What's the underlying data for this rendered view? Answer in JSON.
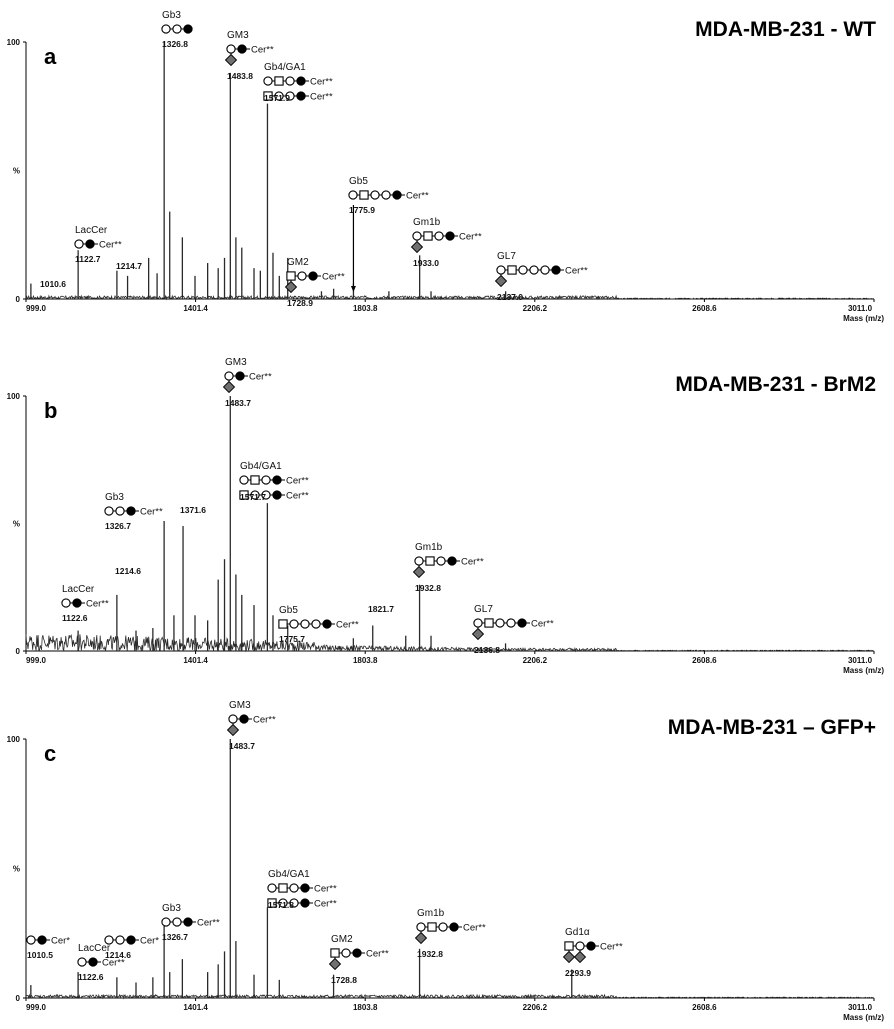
{
  "figure": {
    "x_range": [
      999.0,
      3011.0
    ],
    "x_ticks": [
      "999.0",
      "1401.4",
      "1803.8",
      "2206.2",
      "2608.6",
      "3011.0"
    ],
    "x_label": "Mass (m/z)",
    "y_ticks": [
      "0",
      "%",
      "100"
    ],
    "colors": {
      "trace": "#2a2a2a",
      "axis": "#000000",
      "diamond": "#707070",
      "filled": "#000000"
    }
  },
  "chart_data": [
    {
      "type": "line",
      "letter": "a",
      "title": "MDA-MB-231 - WT",
      "ylim": [
        0,
        100
      ],
      "noise": 1.2,
      "peaks": [
        {
          "mz": 1010.6,
          "h": 6
        },
        {
          "mz": 1122.7,
          "h": 19
        },
        {
          "mz": 1214.7,
          "h": 11
        },
        {
          "mz": 1240,
          "h": 9
        },
        {
          "mz": 1290,
          "h": 16
        },
        {
          "mz": 1310,
          "h": 10
        },
        {
          "mz": 1326.8,
          "h": 100
        },
        {
          "mz": 1340,
          "h": 34
        },
        {
          "mz": 1370,
          "h": 24
        },
        {
          "mz": 1400,
          "h": 9
        },
        {
          "mz": 1430,
          "h": 14
        },
        {
          "mz": 1455,
          "h": 12
        },
        {
          "mz": 1470,
          "h": 16
        },
        {
          "mz": 1483.8,
          "h": 88
        },
        {
          "mz": 1497,
          "h": 24
        },
        {
          "mz": 1511,
          "h": 20
        },
        {
          "mz": 1540,
          "h": 12
        },
        {
          "mz": 1555,
          "h": 11
        },
        {
          "mz": 1571.9,
          "h": 76
        },
        {
          "mz": 1585,
          "h": 18
        },
        {
          "mz": 1600,
          "h": 9
        },
        {
          "mz": 1620,
          "h": 16
        },
        {
          "mz": 1700,
          "h": 3
        },
        {
          "mz": 1728.9,
          "h": 4
        },
        {
          "mz": 1775.9,
          "h": 6
        },
        {
          "mz": 1860,
          "h": 3
        },
        {
          "mz": 1933.0,
          "h": 17
        },
        {
          "mz": 1960,
          "h": 3
        },
        {
          "mz": 2137.0,
          "h": 3
        }
      ],
      "annotations": [
        {
          "name": "LacCer",
          "mz": "1122.7",
          "glyph": "OF",
          "cer": "Cer**"
        },
        {
          "mz": "1214.7"
        },
        {
          "mz": "1010.6"
        },
        {
          "name": "Gb3",
          "mz": "1326.8",
          "glyph": "OOF"
        },
        {
          "name": "GM3",
          "mz": "1483.8",
          "glyph": "OF",
          "cer": "Cer**",
          "diamonds": 1
        },
        {
          "name": "Gb4/GA1",
          "mz": "1571.9",
          "glyph": "OSOF",
          "glyph2": "SOOF",
          "cer": "Cer**"
        },
        {
          "name": "GM2",
          "mz": "1728.9",
          "glyph": "SOF",
          "cer": "Cer**",
          "diamonds": 1
        },
        {
          "name": "Gb5",
          "mz": "1775.9",
          "glyph": "OSOOF",
          "cer": "Cer**"
        },
        {
          "name": "Gm1b",
          "mz": "1933.0",
          "glyph": "OSOF",
          "cer": "Cer**",
          "diamonds": 1
        },
        {
          "name": "GL7",
          "mz": "2137.0",
          "glyph": "OSOOOF",
          "cer": "Cer**",
          "diamonds": 1
        }
      ]
    },
    {
      "type": "line",
      "letter": "b",
      "title": "MDA-MB-231 - BrM2",
      "ylim": [
        0,
        100
      ],
      "noise": 4.5,
      "peaks": [
        {
          "mz": 1122.6,
          "h": 8
        },
        {
          "mz": 1214.6,
          "h": 22
        },
        {
          "mz": 1260,
          "h": 8
        },
        {
          "mz": 1300,
          "h": 9
        },
        {
          "mz": 1326.7,
          "h": 51
        },
        {
          "mz": 1350,
          "h": 14
        },
        {
          "mz": 1371.6,
          "h": 49
        },
        {
          "mz": 1400,
          "h": 14
        },
        {
          "mz": 1430,
          "h": 12
        },
        {
          "mz": 1455,
          "h": 28
        },
        {
          "mz": 1470,
          "h": 36
        },
        {
          "mz": 1483.7,
          "h": 100
        },
        {
          "mz": 1497,
          "h": 30
        },
        {
          "mz": 1511,
          "h": 22
        },
        {
          "mz": 1540,
          "h": 18
        },
        {
          "mz": 1571.7,
          "h": 58
        },
        {
          "mz": 1585,
          "h": 14
        },
        {
          "mz": 1620,
          "h": 10
        },
        {
          "mz": 1775.7,
          "h": 5
        },
        {
          "mz": 1821.7,
          "h": 10
        },
        {
          "mz": 1900,
          "h": 6
        },
        {
          "mz": 1932.8,
          "h": 26
        },
        {
          "mz": 1960,
          "h": 6
        },
        {
          "mz": 2136.8,
          "h": 3
        }
      ],
      "annotations": [
        {
          "name": "LacCer",
          "mz": "1122.6",
          "glyph": "OF",
          "cer": "Cer**"
        },
        {
          "mz": "1214.6"
        },
        {
          "name": "Gb3",
          "mz": "1326.7",
          "glyph": "OOF",
          "cer": "Cer**"
        },
        {
          "mz": "1371.6"
        },
        {
          "name": "GM3",
          "mz": "1483.7",
          "glyph": "OF",
          "cer": "Cer**",
          "diamonds": 1
        },
        {
          "name": "Gb4/GA1",
          "mz": "1571.7",
          "glyph": "OSOF",
          "glyph2": "SOOF",
          "cer": "Cer**"
        },
        {
          "name": "Gb5",
          "mz": "1775.7",
          "glyph": "SOOOF",
          "cer": "Cer**"
        },
        {
          "mz": "1821.7"
        },
        {
          "name": "Gm1b",
          "mz": "1932.8",
          "glyph": "OSOF",
          "cer": "Cer**",
          "diamonds": 1
        },
        {
          "name": "GL7",
          "mz": "2136.8",
          "glyph": "OSOOF",
          "cer": "Cer**",
          "diamonds": 1
        }
      ]
    },
    {
      "type": "line",
      "letter": "c",
      "title": "MDA-MB-231 – GFP+",
      "ylim": [
        0,
        100
      ],
      "noise": 1.2,
      "peaks": [
        {
          "mz": 1010.5,
          "h": 5
        },
        {
          "mz": 1122.6,
          "h": 10
        },
        {
          "mz": 1214.6,
          "h": 8
        },
        {
          "mz": 1260,
          "h": 6
        },
        {
          "mz": 1300,
          "h": 8
        },
        {
          "mz": 1326.7,
          "h": 29
        },
        {
          "mz": 1340,
          "h": 10
        },
        {
          "mz": 1370,
          "h": 15
        },
        {
          "mz": 1430,
          "h": 10
        },
        {
          "mz": 1455,
          "h": 13
        },
        {
          "mz": 1470,
          "h": 18
        },
        {
          "mz": 1483.7,
          "h": 100
        },
        {
          "mz": 1497,
          "h": 22
        },
        {
          "mz": 1540,
          "h": 9
        },
        {
          "mz": 1571.8,
          "h": 35
        },
        {
          "mz": 1600,
          "h": 7
        },
        {
          "mz": 1728.8,
          "h": 9
        },
        {
          "mz": 1932.8,
          "h": 19
        },
        {
          "mz": 2293.9,
          "h": 11
        }
      ],
      "annotations": [
        {
          "mz": "1010.5",
          "glyph": "OF",
          "cer": "Cer*"
        },
        {
          "name": "LacCer",
          "mz": "1122.6",
          "glyph": "OF",
          "cer": "Cer**"
        },
        {
          "mz": "1214.6",
          "glyph": "OOF",
          "cer": "Cer*"
        },
        {
          "name": "Gb3",
          "mz": "1326.7",
          "glyph": "OOF",
          "cer": "Cer**"
        },
        {
          "name": "GM3",
          "mz": "1483.7",
          "glyph": "OF",
          "cer": "Cer**",
          "diamonds": 1
        },
        {
          "name": "Gb4/GA1",
          "mz": "1571.8",
          "glyph": "OSOF",
          "glyph2": "SOOF",
          "cer": "Cer**"
        },
        {
          "name": "GM2",
          "mz": "1728.8",
          "glyph": "SOF",
          "cer": "Cer**",
          "diamonds": 1
        },
        {
          "name": "Gm1b",
          "mz": "1932.8",
          "glyph": "OSOF",
          "cer": "Cer**",
          "diamonds": 1
        },
        {
          "name": "Gd1α",
          "mz": "2293.9",
          "glyph": "SOF",
          "cer": "Cer**",
          "diamonds": 2
        }
      ]
    }
  ]
}
